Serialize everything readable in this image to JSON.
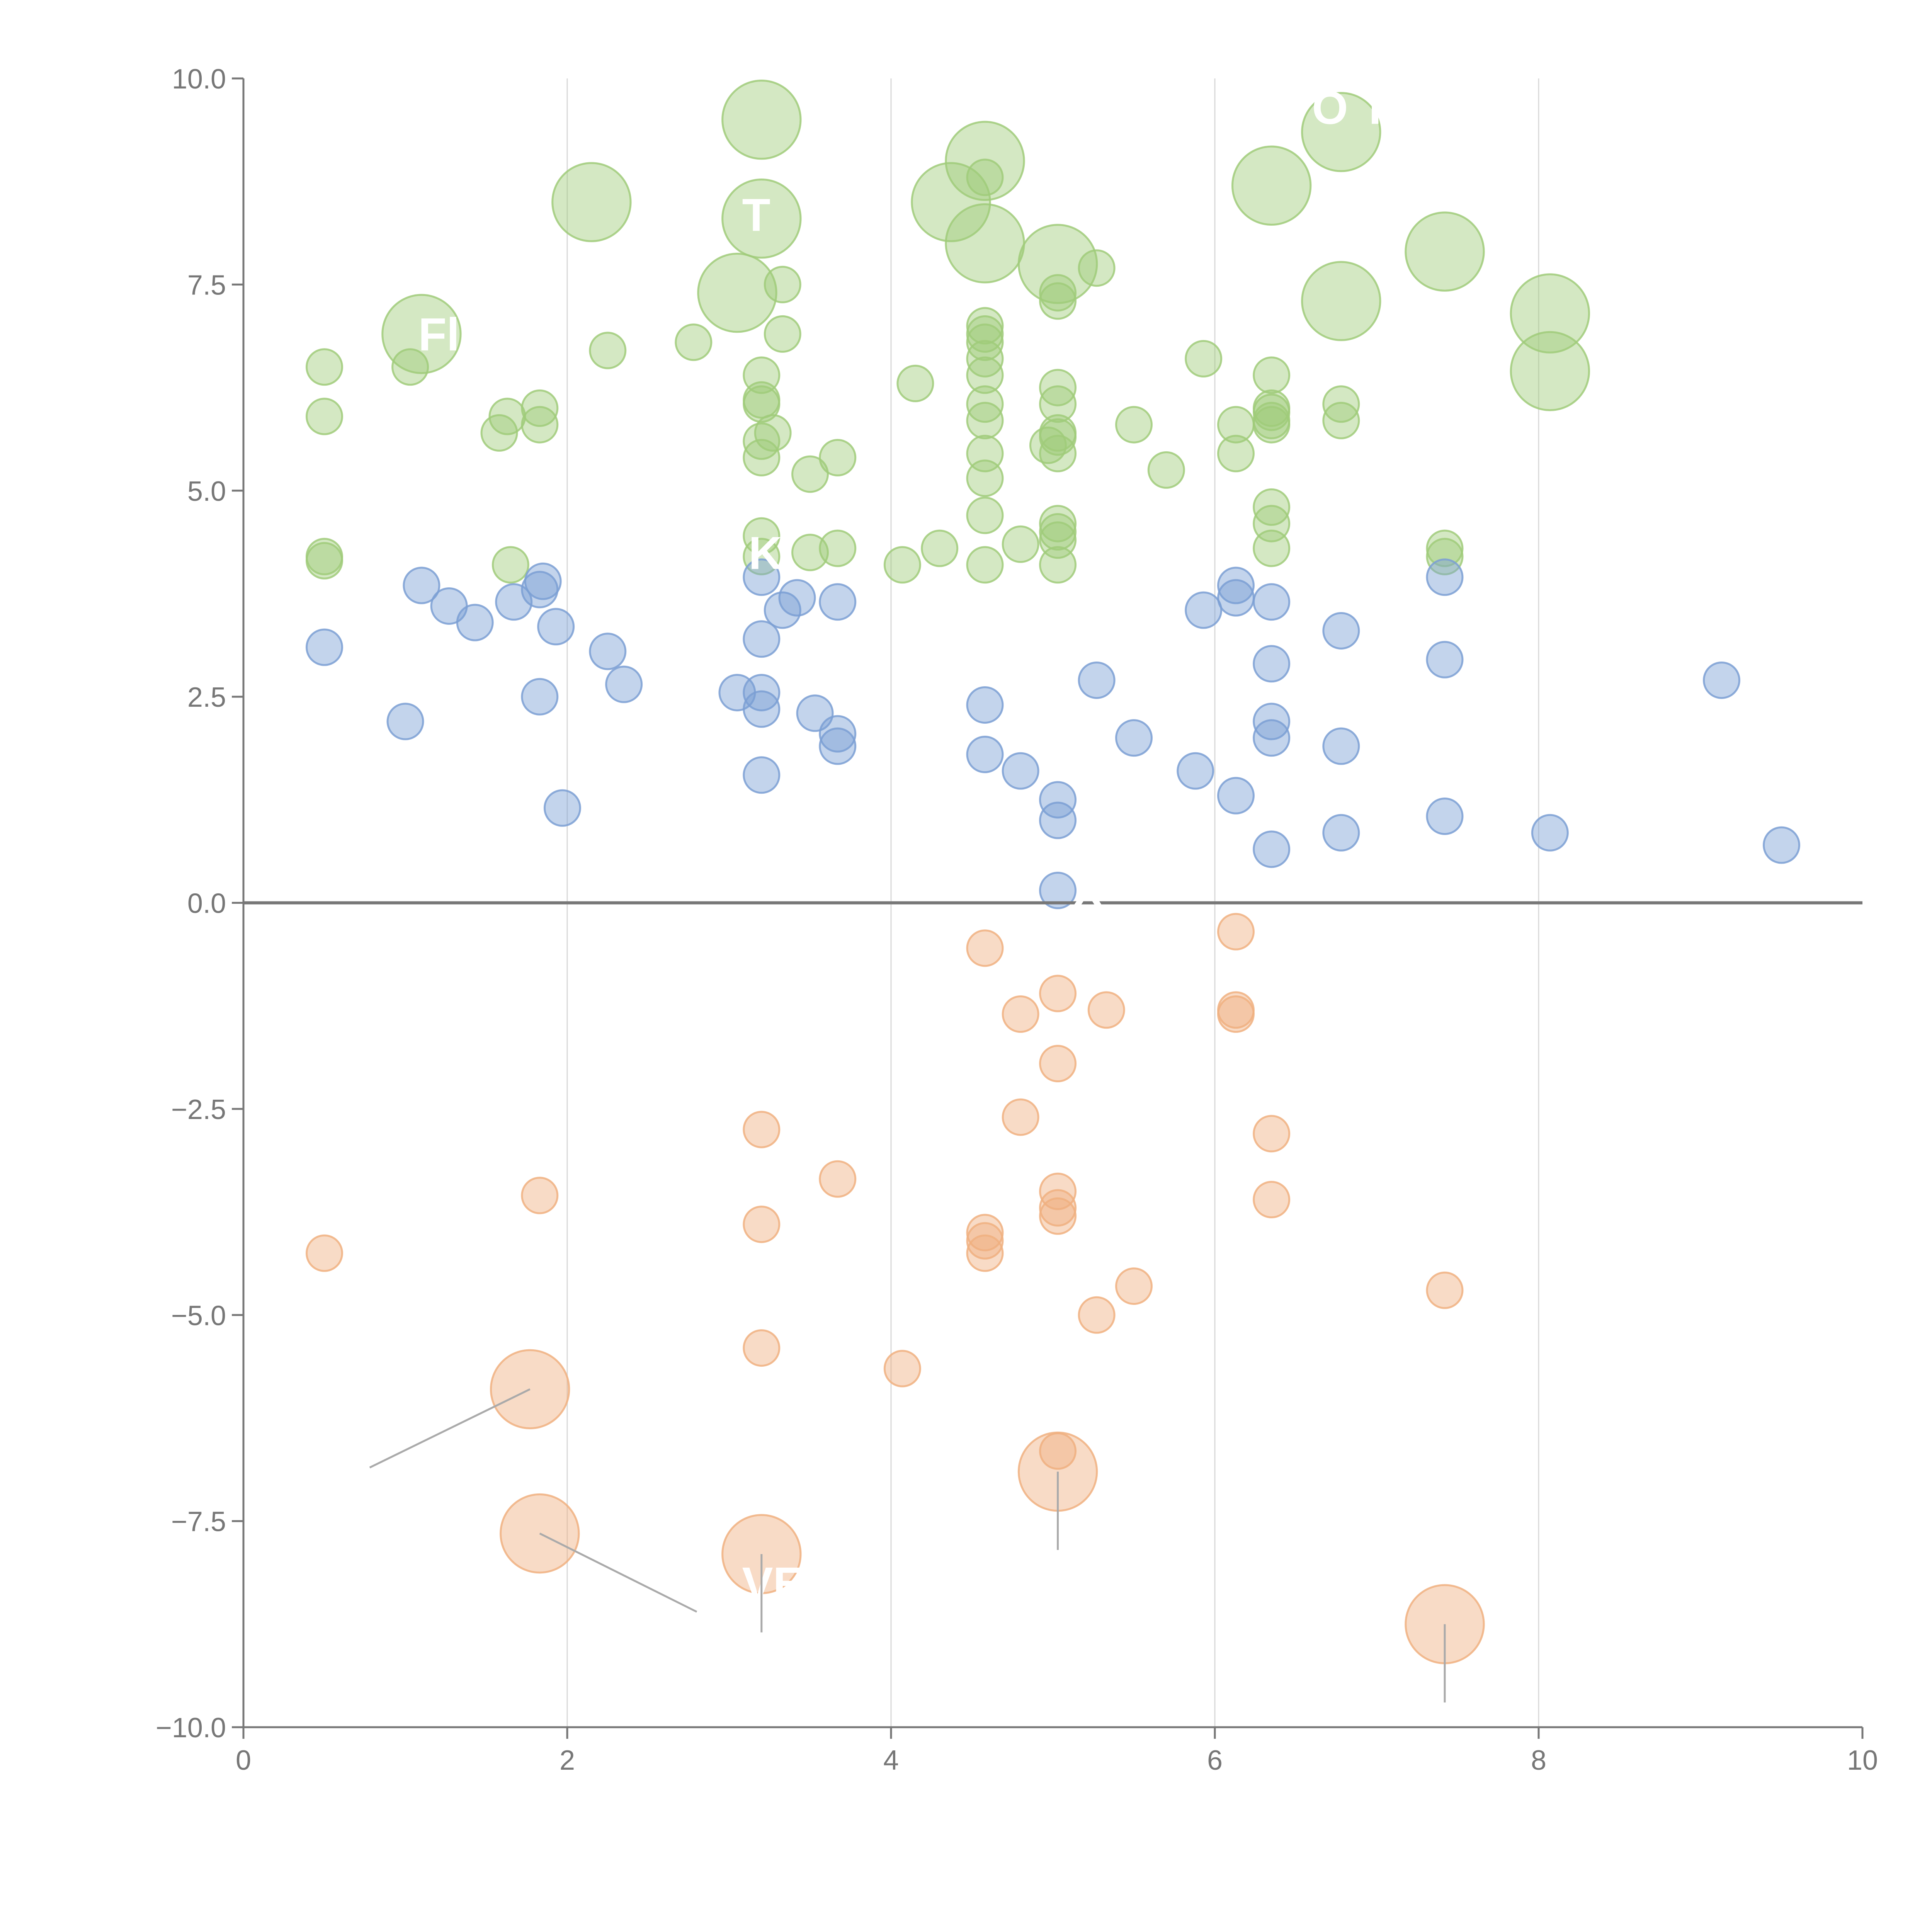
{
  "chart_data": {
    "type": "scatter",
    "title": "",
    "xlabel": "",
    "ylabel": "",
    "xlim": [
      0,
      10
    ],
    "ylim": [
      -10,
      10
    ],
    "x_ticks": [
      "0",
      "2",
      "4",
      "6",
      "8",
      "10"
    ],
    "y_ticks": [
      "10.0",
      "7.5",
      "5.0",
      "2.5",
      "0.0",
      "−2.5",
      "−5.0",
      "−7.5",
      "−10.0"
    ],
    "x_tick_values": [
      0,
      2,
      4,
      6,
      8,
      10
    ],
    "y_tick_values": [
      10,
      7.5,
      5,
      2.5,
      0,
      -2.5,
      -5,
      -7.5,
      -10
    ],
    "grid": "vertical",
    "legend": "none",
    "series": [
      {
        "color": "#a0cb7a",
        "points": [
          [
            0.5,
            6.5,
            1
          ],
          [
            0.5,
            5.9,
            1
          ],
          [
            0.5,
            4.15,
            1
          ],
          [
            0.5,
            4.2,
            1
          ],
          [
            1.03,
            6.5,
            1
          ],
          [
            1.1,
            6.9,
            2.2
          ],
          [
            1.58,
            5.7,
            1
          ],
          [
            1.63,
            5.9,
            1
          ],
          [
            1.83,
            6.0,
            1
          ],
          [
            1.83,
            5.8,
            1
          ],
          [
            1.65,
            4.1,
            1
          ],
          [
            2.15,
            8.5,
            2.2
          ],
          [
            2.25,
            6.7,
            1
          ],
          [
            2.78,
            6.8,
            1
          ],
          [
            3.05,
            7.4,
            2.2
          ],
          [
            3.2,
            9.5,
            2.2
          ],
          [
            3.2,
            8.3,
            2.2
          ],
          [
            3.33,
            7.5,
            1
          ],
          [
            3.33,
            6.9,
            1
          ],
          [
            3.2,
            6.4,
            1
          ],
          [
            3.2,
            6.1,
            1
          ],
          [
            3.2,
            6.05,
            1
          ],
          [
            3.2,
            5.6,
            1
          ],
          [
            3.27,
            5.7,
            1
          ],
          [
            3.2,
            5.4,
            1
          ],
          [
            3.2,
            4.45,
            1
          ],
          [
            3.2,
            4.2,
            1
          ],
          [
            3.5,
            5.2,
            1
          ],
          [
            3.67,
            5.4,
            1
          ],
          [
            3.5,
            4.25,
            1
          ],
          [
            3.67,
            4.3,
            1
          ],
          [
            4.07,
            4.1,
            1
          ],
          [
            4.15,
            6.3,
            1
          ],
          [
            4.3,
            4.3,
            1
          ],
          [
            4.37,
            8.5,
            2.2
          ],
          [
            4.58,
            9.0,
            2.2
          ],
          [
            4.58,
            8.8,
            1
          ],
          [
            4.58,
            8.0,
            2.2
          ],
          [
            4.58,
            7.0,
            1
          ],
          [
            4.58,
            6.9,
            1
          ],
          [
            4.58,
            6.8,
            1
          ],
          [
            4.58,
            6.6,
            1
          ],
          [
            4.58,
            6.4,
            1
          ],
          [
            4.58,
            6.05,
            1
          ],
          [
            4.58,
            5.85,
            1
          ],
          [
            4.58,
            5.45,
            1
          ],
          [
            4.58,
            5.15,
            1
          ],
          [
            4.58,
            4.7,
            1
          ],
          [
            4.58,
            4.1,
            1
          ],
          [
            4.8,
            4.35,
            1
          ],
          [
            4.97,
            5.55,
            1
          ],
          [
            5.03,
            7.75,
            2.2
          ],
          [
            5.03,
            7.4,
            1
          ],
          [
            5.03,
            7.3,
            1
          ],
          [
            5.03,
            6.25,
            1
          ],
          [
            5.03,
            6.05,
            1
          ],
          [
            5.03,
            5.7,
            1
          ],
          [
            5.03,
            5.65,
            1
          ],
          [
            5.03,
            5.45,
            1
          ],
          [
            5.03,
            4.6,
            1
          ],
          [
            5.03,
            4.5,
            1
          ],
          [
            5.03,
            4.4,
            1
          ],
          [
            5.03,
            4.1,
            1
          ],
          [
            5.27,
            7.7,
            1
          ],
          [
            5.5,
            5.8,
            1
          ],
          [
            5.7,
            5.25,
            1
          ],
          [
            5.93,
            6.6,
            1
          ],
          [
            6.13,
            5.8,
            1
          ],
          [
            6.13,
            5.45,
            1
          ],
          [
            6.35,
            8.7,
            2.2
          ],
          [
            6.35,
            6.4,
            1
          ],
          [
            6.35,
            6.0,
            1
          ],
          [
            6.35,
            5.95,
            1
          ],
          [
            6.35,
            5.85,
            1
          ],
          [
            6.35,
            5.8,
            1
          ],
          [
            6.35,
            4.8,
            1
          ],
          [
            6.35,
            4.6,
            1
          ],
          [
            6.35,
            4.3,
            1
          ],
          [
            6.78,
            9.35,
            2.2
          ],
          [
            6.78,
            7.3,
            2.2
          ],
          [
            6.78,
            6.05,
            1
          ],
          [
            6.78,
            5.85,
            1
          ],
          [
            7.42,
            7.9,
            2.2
          ],
          [
            7.42,
            4.3,
            1
          ],
          [
            7.42,
            4.2,
            1
          ],
          [
            8.07,
            7.15,
            2.2
          ],
          [
            8.07,
            6.45,
            2.2
          ]
        ]
      },
      {
        "color": "#7b9fd4",
        "points": [
          [
            0.5,
            3.1,
            1
          ],
          [
            1.0,
            2.2,
            1
          ],
          [
            1.1,
            3.85,
            1
          ],
          [
            1.27,
            3.6,
            1
          ],
          [
            1.43,
            3.4,
            1
          ],
          [
            1.67,
            3.65,
            1
          ],
          [
            1.85,
            3.9,
            1
          ],
          [
            1.83,
            3.8,
            1
          ],
          [
            1.93,
            3.35,
            1
          ],
          [
            1.83,
            2.5,
            1
          ],
          [
            1.97,
            1.15,
            1
          ],
          [
            2.25,
            3.05,
            1
          ],
          [
            2.35,
            2.65,
            1
          ],
          [
            3.05,
            2.55,
            1
          ],
          [
            3.2,
            3.95,
            1
          ],
          [
            3.2,
            3.2,
            1
          ],
          [
            3.2,
            2.55,
            1
          ],
          [
            3.2,
            2.35,
            1
          ],
          [
            3.2,
            1.55,
            1
          ],
          [
            3.33,
            3.55,
            1
          ],
          [
            3.42,
            3.7,
            1
          ],
          [
            3.53,
            2.3,
            1
          ],
          [
            3.67,
            3.65,
            1
          ],
          [
            3.67,
            2.05,
            1
          ],
          [
            3.67,
            1.9,
            1
          ],
          [
            4.58,
            2.4,
            1
          ],
          [
            4.58,
            1.8,
            1
          ],
          [
            4.8,
            1.6,
            1
          ],
          [
            5.03,
            1.25,
            1
          ],
          [
            5.03,
            1.0,
            1
          ],
          [
            5.03,
            0.15,
            1
          ],
          [
            5.27,
            2.7,
            1
          ],
          [
            5.5,
            2.0,
            1
          ],
          [
            5.88,
            1.6,
            1
          ],
          [
            5.93,
            3.55,
            1
          ],
          [
            6.13,
            3.85,
            1
          ],
          [
            6.13,
            3.7,
            1
          ],
          [
            6.13,
            1.3,
            1
          ],
          [
            6.35,
            3.65,
            1
          ],
          [
            6.35,
            2.9,
            1
          ],
          [
            6.35,
            2.2,
            1
          ],
          [
            6.35,
            2.0,
            1
          ],
          [
            6.35,
            0.65,
            1
          ],
          [
            6.78,
            3.3,
            1
          ],
          [
            6.78,
            1.9,
            1
          ],
          [
            6.78,
            0.85,
            1
          ],
          [
            7.42,
            3.95,
            1
          ],
          [
            7.42,
            2.95,
            1
          ],
          [
            7.42,
            1.05,
            1
          ],
          [
            8.07,
            0.85,
            1
          ],
          [
            9.13,
            2.7,
            1
          ],
          [
            9.5,
            0.7,
            1
          ]
        ]
      },
      {
        "color": "#f0b080",
        "points": [
          [
            0.5,
            -4.25,
            1
          ],
          [
            1.77,
            -5.9,
            2.2
          ],
          [
            1.83,
            -3.55,
            1
          ],
          [
            1.83,
            -7.65,
            2.2
          ],
          [
            3.2,
            -2.75,
            1
          ],
          [
            3.2,
            -3.9,
            1
          ],
          [
            3.2,
            -5.4,
            1
          ],
          [
            3.2,
            -7.9,
            2.2
          ],
          [
            3.67,
            -3.35,
            1
          ],
          [
            4.07,
            -5.65,
            1
          ],
          [
            4.58,
            -0.55,
            1
          ],
          [
            4.58,
            -4.0,
            1
          ],
          [
            4.58,
            -4.1,
            1
          ],
          [
            4.58,
            -4.25,
            1
          ],
          [
            4.8,
            -1.35,
            1
          ],
          [
            4.8,
            -2.6,
            1
          ],
          [
            5.03,
            -1.1,
            1
          ],
          [
            5.03,
            -1.95,
            1
          ],
          [
            5.03,
            -3.5,
            1
          ],
          [
            5.03,
            -3.7,
            1
          ],
          [
            5.03,
            -3.8,
            1
          ],
          [
            5.03,
            -6.65,
            1
          ],
          [
            5.03,
            -6.9,
            2.2
          ],
          [
            5.27,
            -5.0,
            1
          ],
          [
            5.33,
            -1.3,
            1
          ],
          [
            5.5,
            -4.65,
            1
          ],
          [
            6.13,
            -0.35,
            1
          ],
          [
            6.13,
            -1.3,
            1
          ],
          [
            6.13,
            -1.35,
            1
          ],
          [
            6.35,
            -2.8,
            1
          ],
          [
            6.35,
            -3.6,
            1
          ],
          [
            7.42,
            -4.7,
            1
          ],
          [
            7.42,
            -8.75,
            2.2
          ]
        ]
      }
    ],
    "annotations": [
      {
        "label": "Fl",
        "x": 1.1,
        "y": 6.9,
        "lx": 1.08,
        "ly": 6.7,
        "leader": false
      },
      {
        "label": "T",
        "x": 3.2,
        "y": 8.3,
        "lx": 3.08,
        "ly": 8.15,
        "leader": false
      },
      {
        "label": "K",
        "x": 3.2,
        "y": 4.2,
        "lx": 3.12,
        "ly": 4.05,
        "leader": false
      },
      {
        "label": "O T",
        "x": 6.78,
        "y": 9.35,
        "lx": 6.6,
        "ly": 9.45,
        "leader": false
      },
      {
        "label": "X",
        "x": 5.03,
        "y": 0.15,
        "lx": 5.12,
        "ly": -0.05,
        "leader": false
      },
      {
        "label": "VE",
        "x": 3.2,
        "y": -7.9,
        "lx": 3.08,
        "ly": -8.45,
        "leader": false
      },
      {
        "label": "",
        "x": 1.77,
        "y": -5.9,
        "lx": 0.78,
        "ly": -6.85,
        "leader": true
      },
      {
        "label": "",
        "x": 1.83,
        "y": -7.65,
        "lx": 2.8,
        "ly": -8.6,
        "leader": true
      },
      {
        "label": "",
        "x": 3.2,
        "y": -7.9,
        "lx": 3.2,
        "ly": -8.85,
        "leader": true
      },
      {
        "label": "",
        "x": 5.03,
        "y": -6.9,
        "lx": 5.03,
        "ly": -7.85,
        "leader": true
      },
      {
        "label": "",
        "x": 7.42,
        "y": -8.75,
        "lx": 7.42,
        "ly": -9.7,
        "leader": true
      }
    ]
  }
}
